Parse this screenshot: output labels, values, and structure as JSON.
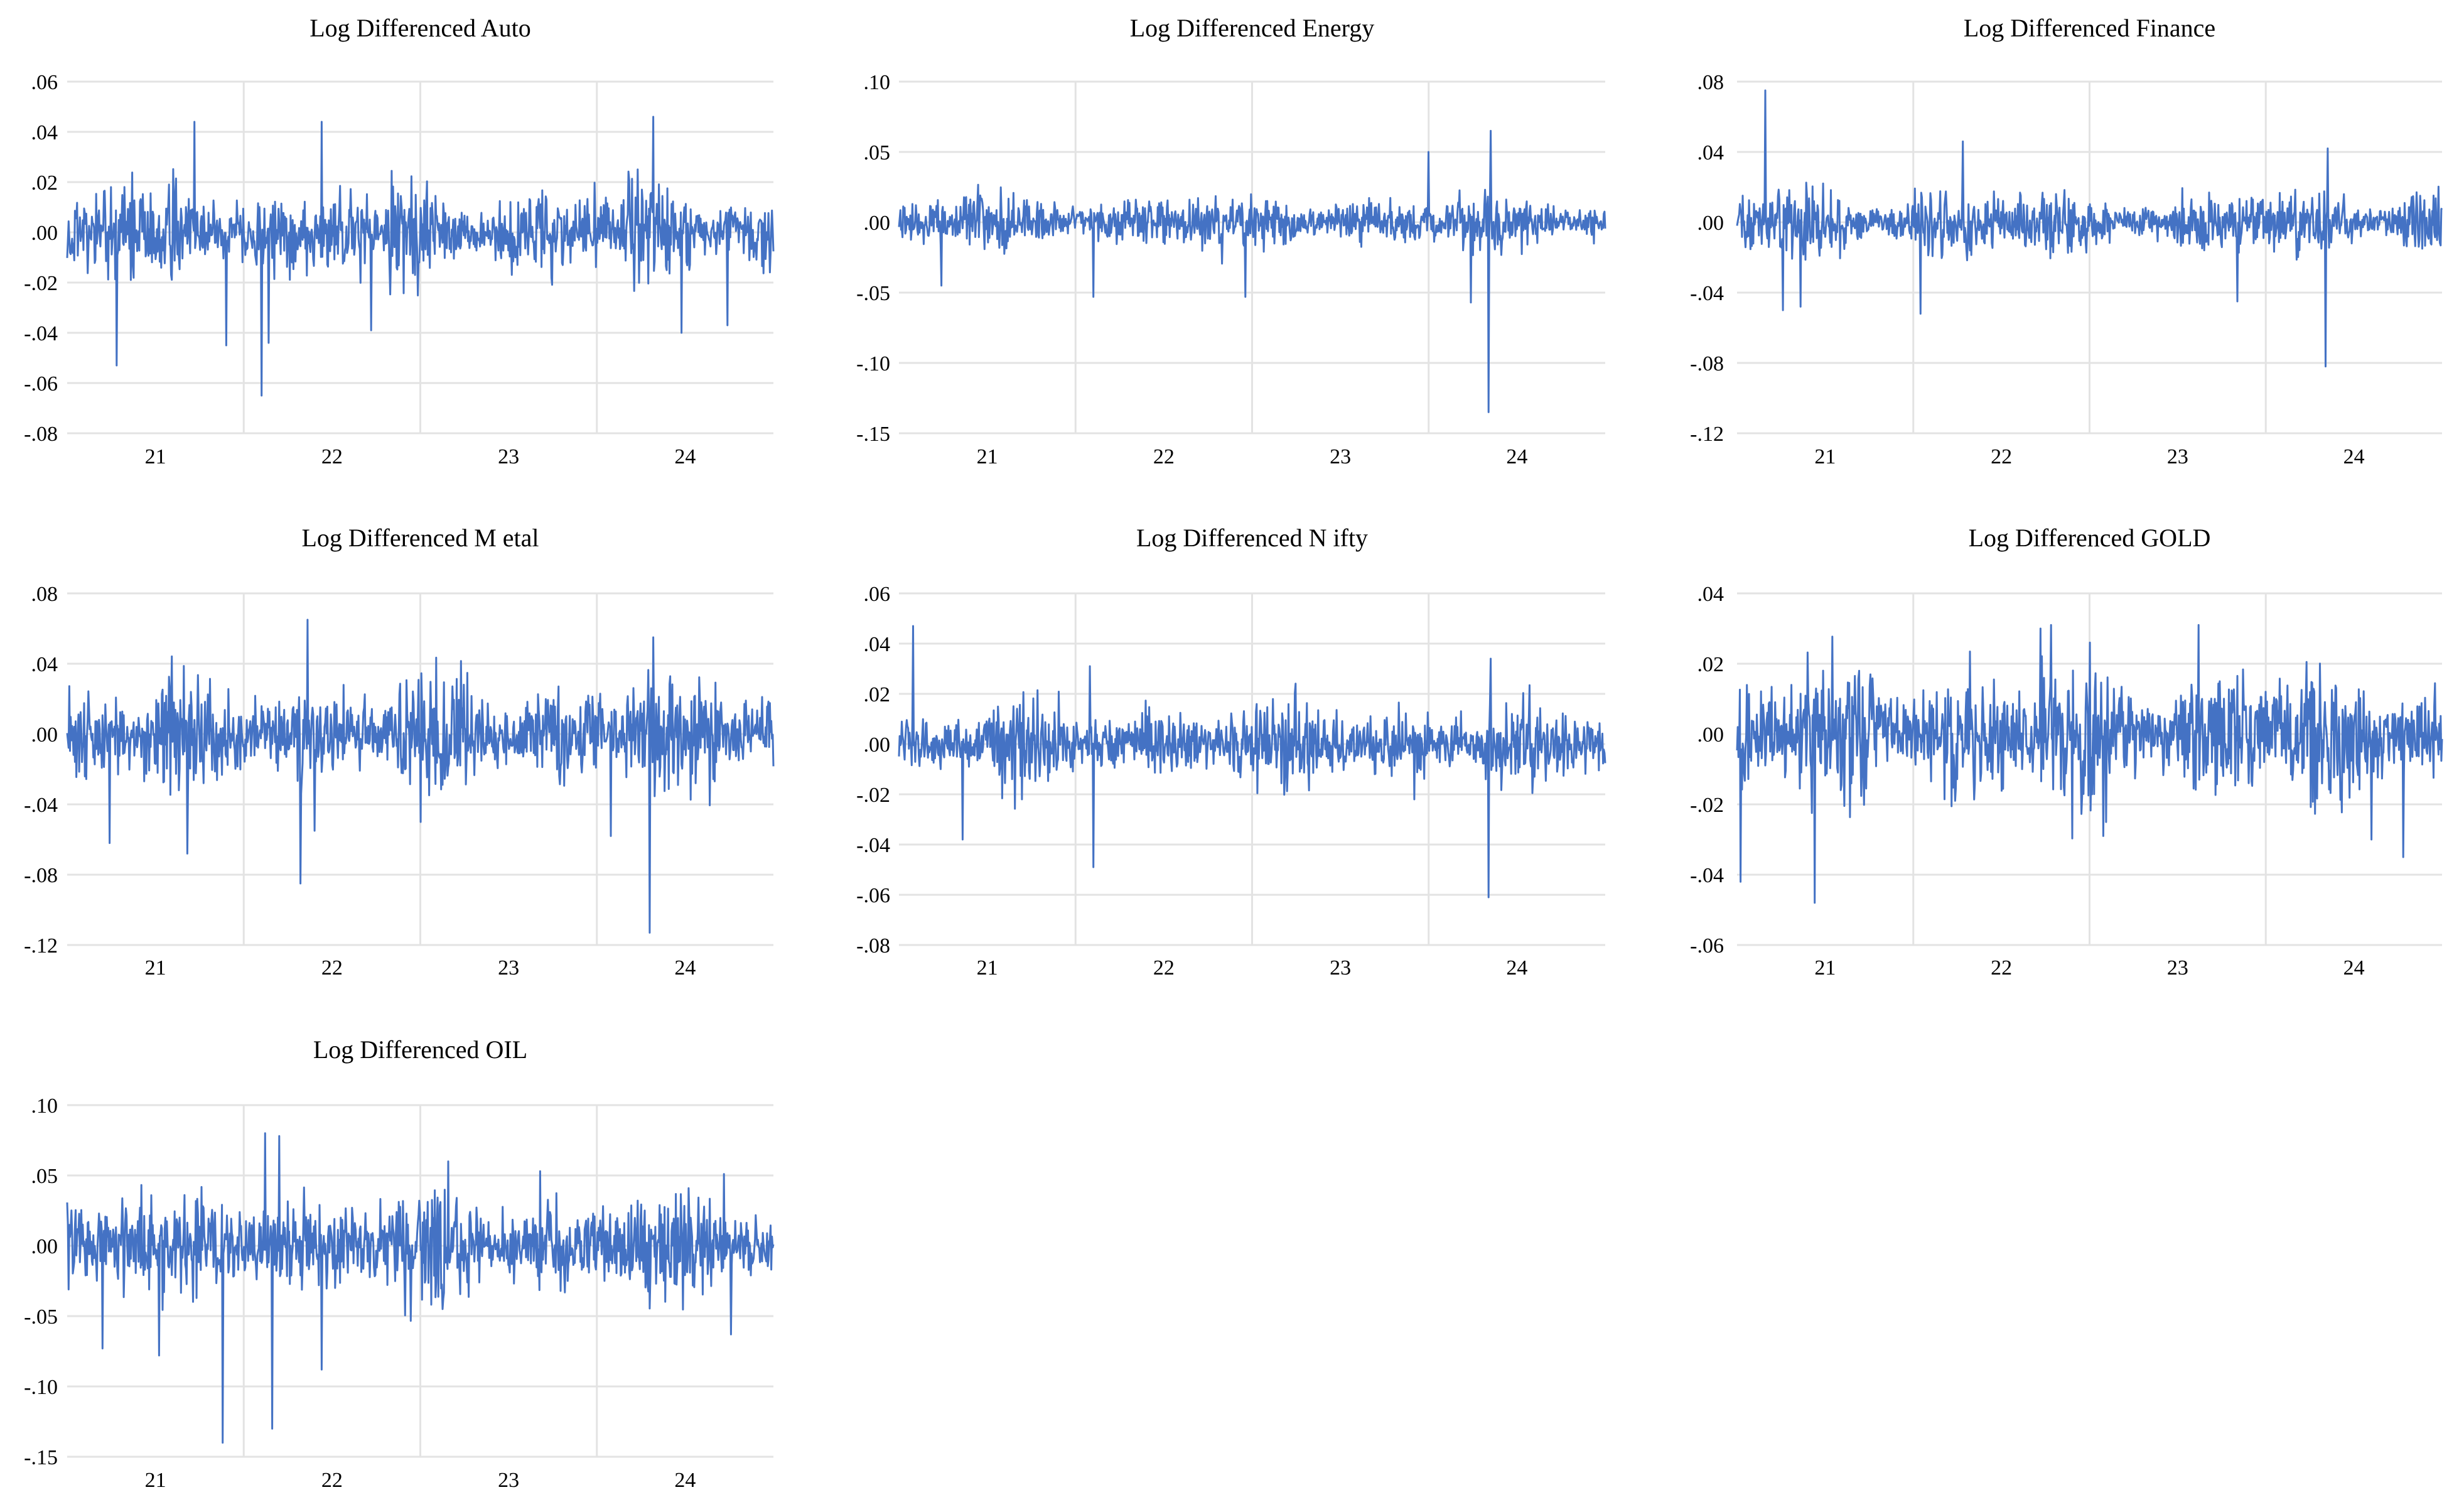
{
  "figure": {
    "line_color": "#4472c4",
    "grid_color": "#e3e3e3",
    "background": "#ffffff"
  },
  "chart_data": [
    {
      "type": "line",
      "title": "Log Differenced Auto",
      "series": [
        {
          "values": []
        }
      ],
      "yticks": [
        ".06",
        ".04",
        ".02",
        ".00",
        "-.02",
        "-.04",
        "-.06",
        "-.08"
      ],
      "ylim": [
        -0.08,
        0.06
      ],
      "xticks": [
        "21",
        "22",
        "23",
        "24"
      ],
      "grid": true,
      "spikes": [
        [
          0.07,
          -0.053
        ],
        [
          0.18,
          0.044
        ],
        [
          0.225,
          -0.045
        ],
        [
          0.275,
          -0.065
        ],
        [
          0.285,
          -0.044
        ],
        [
          0.36,
          0.044
        ],
        [
          0.43,
          -0.039
        ],
        [
          0.83,
          0.046
        ],
        [
          0.87,
          -0.04
        ],
        [
          0.935,
          -0.037
        ]
      ],
      "noise_amp": 0.011,
      "seed": 11
    },
    {
      "type": "line",
      "title": "Log Differenced Energy",
      "series": [
        {
          "values": []
        }
      ],
      "yticks": [
        ".10",
        ".05",
        ".00",
        "-.05",
        "-.10",
        "-.15"
      ],
      "ylim": [
        -0.15,
        0.1
      ],
      "xticks": [
        "21",
        "22",
        "23",
        "24"
      ],
      "grid": true,
      "spikes": [
        [
          0.06,
          -0.045
        ],
        [
          0.275,
          -0.053
        ],
        [
          0.49,
          -0.053
        ],
        [
          0.75,
          0.05
        ],
        [
          0.81,
          -0.057
        ],
        [
          0.835,
          -0.135
        ],
        [
          0.838,
          0.065
        ]
      ],
      "noise_amp": 0.011,
      "seed": 23
    },
    {
      "type": "line",
      "title": "Log Differenced Finance",
      "series": [
        {
          "values": []
        }
      ],
      "yticks": [
        ".08",
        ".04",
        ".00",
        "-.04",
        "-.08",
        "-.12"
      ],
      "ylim": [
        -0.12,
        0.08
      ],
      "xticks": [
        "21",
        "22",
        "23",
        "24"
      ],
      "grid": true,
      "spikes": [
        [
          0.04,
          0.075
        ],
        [
          0.065,
          -0.05
        ],
        [
          0.09,
          -0.048
        ],
        [
          0.26,
          -0.052
        ],
        [
          0.32,
          0.046
        ],
        [
          0.71,
          -0.045
        ],
        [
          0.835,
          -0.082
        ],
        [
          0.838,
          0.042
        ]
      ],
      "noise_amp": 0.011,
      "seed": 37
    },
    {
      "type": "line",
      "title": "Log Differenced M etal",
      "series": [
        {
          "values": []
        }
      ],
      "yticks": [
        ".08",
        ".04",
        ".00",
        "-.04",
        "-.08",
        "-.12"
      ],
      "ylim": [
        -0.12,
        0.08
      ],
      "xticks": [
        "21",
        "22",
        "23",
        "24"
      ],
      "grid": true,
      "spikes": [
        [
          0.06,
          -0.062
        ],
        [
          0.17,
          -0.068
        ],
        [
          0.33,
          -0.085
        ],
        [
          0.34,
          0.065
        ],
        [
          0.35,
          -0.055
        ],
        [
          0.5,
          -0.05
        ],
        [
          0.77,
          -0.058
        ],
        [
          0.825,
          -0.113
        ],
        [
          0.83,
          0.055
        ]
      ],
      "noise_amp": 0.018,
      "seed": 41
    },
    {
      "type": "line",
      "title": "Log Differenced N ifty",
      "series": [
        {
          "values": []
        }
      ],
      "yticks": [
        ".06",
        ".04",
        ".02",
        ".00",
        "-.02",
        "-.04",
        "-.06",
        "-.08"
      ],
      "ylim": [
        -0.08,
        0.06
      ],
      "xticks": [
        "21",
        "22",
        "23",
        "24"
      ],
      "grid": true,
      "spikes": [
        [
          0.02,
          0.047
        ],
        [
          0.09,
          -0.038
        ],
        [
          0.275,
          -0.049
        ],
        [
          0.27,
          0.031
        ],
        [
          0.73,
          -0.022
        ],
        [
          0.835,
          -0.061
        ],
        [
          0.838,
          0.034
        ]
      ],
      "noise_amp": 0.009,
      "seed": 53
    },
    {
      "type": "line",
      "title": "Log Differenced GOLD",
      "series": [
        {
          "values": []
        }
      ],
      "yticks": [
        ".04",
        ".02",
        ".00",
        "-.02",
        "-.04",
        "-.06"
      ],
      "ylim": [
        -0.06,
        0.04
      ],
      "xticks": [
        "21",
        "22",
        "23",
        "24"
      ],
      "grid": true,
      "spikes": [
        [
          0.005,
          -0.042
        ],
        [
          0.11,
          -0.048
        ],
        [
          0.43,
          0.03
        ],
        [
          0.445,
          0.031
        ],
        [
          0.5,
          0.026
        ],
        [
          0.52,
          -0.029
        ],
        [
          0.655,
          0.031
        ],
        [
          0.9,
          -0.03
        ],
        [
          0.945,
          -0.035
        ]
      ],
      "noise_amp": 0.011,
      "seed": 67
    },
    {
      "type": "line",
      "title": "Log Differenced OIL",
      "series": [
        {
          "values": []
        }
      ],
      "yticks": [
        ".10",
        ".05",
        ".00",
        "-.05",
        "-.10",
        "-.15"
      ],
      "ylim": [
        -0.15,
        0.1
      ],
      "xticks": [
        "21",
        "22",
        "23",
        "24"
      ],
      "grid": true,
      "spikes": [
        [
          0.05,
          -0.073
        ],
        [
          0.13,
          -0.078
        ],
        [
          0.22,
          -0.14
        ],
        [
          0.28,
          0.08
        ],
        [
          0.29,
          -0.13
        ],
        [
          0.3,
          0.078
        ],
        [
          0.36,
          -0.088
        ],
        [
          0.54,
          0.06
        ],
        [
          0.67,
          0.053
        ],
        [
          0.94,
          -0.063
        ],
        [
          0.93,
          0.051
        ]
      ],
      "noise_amp": 0.022,
      "seed": 79
    }
  ]
}
